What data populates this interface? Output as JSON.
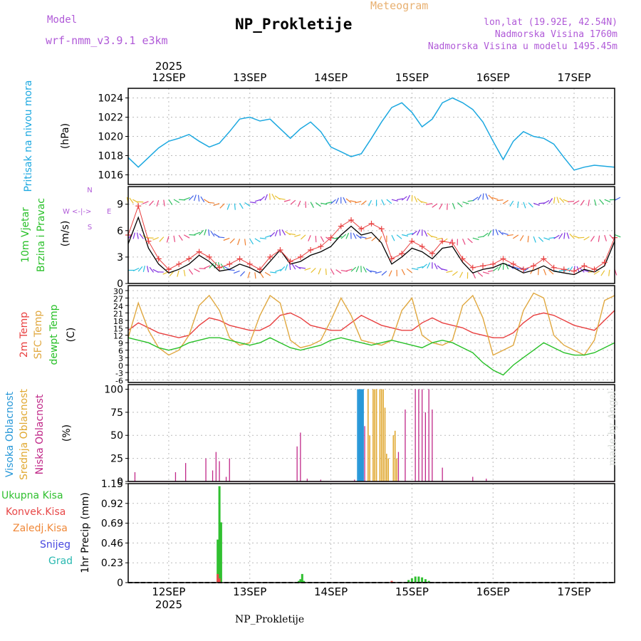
{
  "header": {
    "model_label": "Model",
    "model_version": "wrf-nmm_v3.9.1 e3km",
    "title": "NP_Prokletije",
    "meteogram_label": "Meteogram",
    "coords": "lon,lat (19.92E, 42.54N)",
    "altitude": "Nadmorska Visina 1760m",
    "model_altitude": "Nadmorska Visina u modelu 1495.45m"
  },
  "footer": {
    "station": "NP_Prokletije",
    "credit": "made by Angel"
  },
  "colors": {
    "pressure": "#1ca8e0",
    "temp2m": "#e84040",
    "sfc": "#e0a840",
    "dew": "#28c028",
    "high_cloud": "#2898d8",
    "mid_cloud": "#e0a830",
    "low_cloud": "#c02888",
    "precip_total": "#30c030",
    "precip_conv": "#e84848",
    "precip_frz": "#f08838",
    "snow": "#4848e0",
    "hail": "#28b8b0",
    "wind_speed": "#000000",
    "wind_gust": "#e84040",
    "grid": "#bbbbbb",
    "model_text": "#b05ad8"
  },
  "chart_data": [
    {
      "panel": "pressure",
      "type": "line",
      "ylabel_title": "Pritisak na nivou mora",
      "ylabel_unit": "(hPa)",
      "ylim": [
        1015,
        1025
      ],
      "yticks": [
        1016,
        1018,
        1020,
        1022,
        1024
      ],
      "x": [
        0,
        3,
        6,
        9,
        12,
        15,
        18,
        21,
        24,
        27,
        30,
        33,
        36,
        39,
        42,
        45,
        48,
        51,
        54,
        57,
        60,
        63,
        66,
        69,
        72,
        75,
        78,
        81,
        84,
        87,
        90,
        93,
        96,
        99,
        102,
        105,
        108,
        111,
        114,
        117,
        120,
        123,
        126,
        129,
        132,
        135,
        138,
        141,
        144
      ],
      "values": [
        1017.8,
        1016.8,
        1017.8,
        1018.8,
        1019.5,
        1019.8,
        1020.2,
        1019.5,
        1018.9,
        1019.3,
        1020.5,
        1021.8,
        1022.0,
        1021.6,
        1021.8,
        1020.8,
        1019.8,
        1020.8,
        1021.5,
        1020.5,
        1018.9,
        1018.4,
        1017.9,
        1018.2,
        1019.8,
        1021.5,
        1023.0,
        1023.5,
        1022.5,
        1021.0,
        1021.8,
        1023.5,
        1024.0,
        1023.5,
        1022.8,
        1021.5,
        1019.5,
        1017.6,
        1019.5,
        1020.5,
        1020.0,
        1019.8,
        1019.2,
        1017.8,
        1016.5,
        1016.8,
        1017.0,
        1016.9,
        1016.8
      ]
    },
    {
      "panel": "wind",
      "type": "line",
      "ylabel_title": "10m Vjetar Brzina i Pravac",
      "ylabel_unit": "(m/s)",
      "compass": {
        "w": "W",
        "e": "E",
        "n": "N",
        "s": "S",
        "arrow": "<-|->"
      },
      "ylim": [
        0,
        11
      ],
      "yticks": [
        0,
        3,
        6,
        9
      ],
      "x": [
        0,
        3,
        6,
        9,
        12,
        15,
        18,
        21,
        24,
        27,
        30,
        33,
        36,
        39,
        42,
        45,
        48,
        51,
        54,
        57,
        60,
        63,
        66,
        69,
        72,
        75,
        78,
        81,
        84,
        87,
        90,
        93,
        96,
        99,
        102,
        105,
        108,
        111,
        114,
        117,
        120,
        123,
        126,
        129,
        132,
        135,
        138,
        141,
        144
      ],
      "series": [
        {
          "name": "speed",
          "values": [
            4.5,
            7.5,
            4.0,
            2.2,
            1.2,
            1.6,
            2.2,
            3.2,
            2.5,
            1.4,
            1.6,
            2.2,
            1.8,
            1.2,
            2.5,
            3.8,
            2.2,
            2.5,
            3.2,
            3.6,
            4.2,
            5.5,
            6.5,
            5.5,
            5.8,
            4.6,
            2.2,
            3.0,
            4.0,
            3.6,
            2.8,
            4.0,
            4.2,
            2.4,
            1.2,
            1.6,
            1.8,
            2.3,
            1.8,
            1.2,
            1.5,
            2.0,
            1.4,
            1.2,
            1.0,
            1.6,
            1.3,
            2.0,
            4.8
          ]
        },
        {
          "name": "gust",
          "values": [
            5.5,
            8.8,
            4.8,
            2.8,
            1.6,
            2.2,
            2.8,
            3.6,
            3.0,
            1.8,
            2.2,
            2.8,
            2.2,
            1.6,
            3.0,
            3.8,
            2.5,
            3.0,
            3.8,
            4.2,
            5.2,
            6.5,
            7.2,
            6.2,
            6.8,
            6.2,
            2.8,
            3.4,
            4.8,
            4.2,
            3.4,
            4.8,
            4.6,
            2.8,
            1.8,
            2.0,
            2.2,
            2.8,
            2.2,
            1.6,
            2.0,
            2.8,
            1.8,
            1.6,
            1.4,
            2.0,
            1.6,
            2.4,
            5.2
          ]
        }
      ],
      "direction_bands": [
        1.5,
        5.3,
        9.3
      ]
    },
    {
      "panel": "temperature",
      "type": "line",
      "ylabel_title_1": "2m Temp",
      "ylabel_title_2": "SFC Temp",
      "ylabel_title_3": "dewpt Temp",
      "ylabel_unit": "(C)",
      "ylim": [
        -7,
        32
      ],
      "yticks": [
        -6,
        -3,
        0,
        3,
        6,
        9,
        12,
        15,
        18,
        21,
        24,
        27,
        30
      ],
      "x": [
        0,
        3,
        6,
        9,
        12,
        15,
        18,
        21,
        24,
        27,
        30,
        33,
        36,
        39,
        42,
        45,
        48,
        51,
        54,
        57,
        60,
        63,
        66,
        69,
        72,
        75,
        78,
        81,
        84,
        87,
        90,
        93,
        96,
        99,
        102,
        105,
        108,
        111,
        114,
        117,
        120,
        123,
        126,
        129,
        132,
        135,
        138,
        141,
        144
      ],
      "series": [
        {
          "name": "2m Temp",
          "values": [
            14,
            17,
            15,
            13,
            12,
            11,
            12,
            16,
            19,
            18,
            16,
            15,
            14,
            14,
            16,
            20,
            21,
            19,
            16,
            15,
            14,
            14,
            17,
            20,
            18,
            16,
            15,
            14,
            14,
            17,
            19,
            17,
            16,
            15,
            13,
            12,
            11,
            11,
            13,
            17,
            20,
            21,
            20,
            18,
            16,
            15,
            14,
            18,
            22
          ]
        },
        {
          "name": "SFC Temp",
          "values": [
            11,
            25,
            14,
            7,
            4,
            6,
            12,
            24,
            28,
            22,
            11,
            8,
            9,
            20,
            28,
            25,
            10,
            7,
            8,
            10,
            18,
            27,
            20,
            10,
            9,
            8,
            10,
            22,
            27,
            12,
            9,
            8,
            10,
            24,
            28,
            19,
            4,
            6,
            8,
            22,
            29,
            27,
            12,
            8,
            6,
            4,
            10,
            26,
            28
          ]
        },
        {
          "name": "dewpt Temp",
          "values": [
            11,
            10,
            9,
            7,
            6,
            7,
            9,
            10,
            11,
            11,
            10,
            9,
            8,
            9,
            11,
            9,
            7,
            6,
            7,
            8,
            10,
            11,
            10,
            9,
            8,
            9,
            10,
            9,
            8,
            7,
            9,
            10,
            9,
            7,
            5,
            1,
            -2,
            -4,
            0,
            3,
            6,
            9,
            7,
            5,
            4,
            4,
            5,
            7,
            9
          ]
        }
      ]
    },
    {
      "panel": "clouds",
      "type": "bar",
      "ylabel_title_1": "Visoka Oblacnost",
      "ylabel_title_2": "Srednja Oblacnost",
      "ylabel_title_3": "Niska Oblacnost",
      "ylabel_unit": "(%)",
      "ylim": [
        0,
        105
      ],
      "yticks": [
        0,
        25,
        50,
        75,
        100
      ],
      "series": [
        {
          "name": "high",
          "x": [
            68.0,
            68.5,
            69.0,
            69.5
          ],
          "values": [
            100,
            100,
            100,
            100
          ]
        },
        {
          "name": "mid",
          "x": [
            71.0,
            71.5,
            72.5,
            73.0,
            73.5,
            74.5,
            75.0,
            75.5,
            76.0,
            76.5,
            77.0,
            78.5,
            79.0,
            79.5
          ],
          "values": [
            100,
            50,
            100,
            100,
            100,
            100,
            100,
            100,
            80,
            30,
            25,
            50,
            55,
            25
          ]
        },
        {
          "name": "low",
          "x": [
            2,
            14,
            17,
            23,
            25,
            26,
            27,
            29,
            30,
            50,
            51,
            53,
            57,
            67,
            70,
            80,
            82,
            85,
            86,
            87,
            88,
            89,
            90,
            93,
            102,
            106
          ],
          "values": [
            10,
            10,
            20,
            25,
            12,
            32,
            22,
            5,
            25,
            38,
            53,
            3,
            2,
            2,
            60,
            32,
            78,
            100,
            100,
            100,
            75,
            100,
            78,
            15,
            5,
            3
          ]
        }
      ]
    },
    {
      "panel": "precipitation",
      "type": "bar",
      "ylabel_unit": "1hr Precip (mm)",
      "legend": [
        "Ukupna Kisa",
        "Konvek.Kisa",
        "Zaledj.Kisa",
        "Snijeg",
        "Grad"
      ],
      "ylim": [
        0,
        1.15
      ],
      "yticks": [
        0,
        0.23,
        0.46,
        0.69,
        0.92,
        1.15
      ],
      "ytick_labels": [
        "0",
        "0.23",
        "0.46",
        "0.69",
        "0.92",
        "1.15"
      ],
      "series": [
        {
          "name": "Ukupna Kisa",
          "x": [
            26.5,
            27.0,
            27.5,
            50.5,
            51.0,
            51.5,
            52.0,
            83.0,
            84.0,
            85.0,
            86.0,
            87.0,
            88.0,
            89.0
          ],
          "values": [
            0.5,
            1.12,
            0.7,
            0.02,
            0.04,
            0.1,
            0.02,
            0.03,
            0.05,
            0.07,
            0.07,
            0.06,
            0.04,
            0.02
          ]
        },
        {
          "name": "Konvek.Kisa",
          "x": [
            26.5,
            27.0,
            78.0
          ],
          "values": [
            0.1,
            0.05,
            0.02
          ]
        }
      ]
    }
  ],
  "time_axis": {
    "start_year": "2025",
    "end_year": "2025",
    "dates": [
      "12SEP",
      "13SEP",
      "14SEP",
      "15SEP",
      "16SEP",
      "17SEP"
    ],
    "date_x_hours": [
      12,
      36,
      60,
      84,
      108,
      132
    ],
    "span_hours": 144
  }
}
